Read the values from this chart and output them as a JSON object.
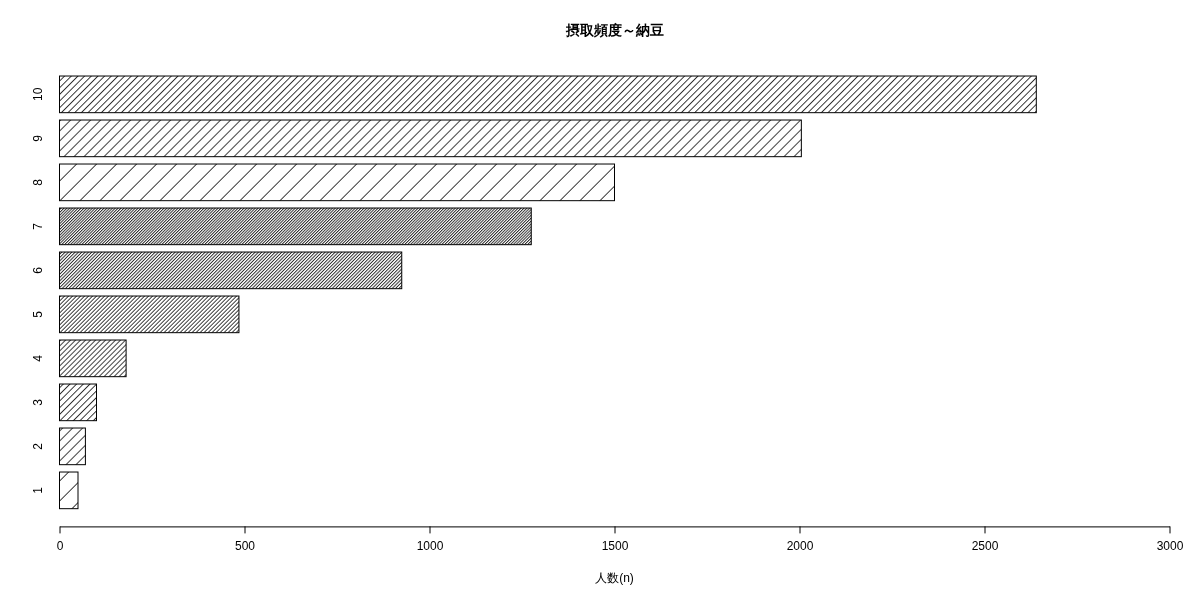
{
  "chart_data": {
    "type": "bar",
    "orientation": "horizontal",
    "title": "摂取頻度～納豆",
    "xlabel": "人数(n)",
    "categories": [
      "10",
      "9",
      "8",
      "7",
      "6",
      "5",
      "4",
      "3",
      "2",
      "1"
    ],
    "values": [
      2640,
      2005,
      1500,
      1275,
      925,
      485,
      180,
      100,
      70,
      50
    ],
    "color": "#000000",
    "xlim": [
      0,
      3000
    ],
    "xticks": [
      0,
      500,
      1000,
      1500,
      2000,
      2500,
      3000
    ]
  }
}
